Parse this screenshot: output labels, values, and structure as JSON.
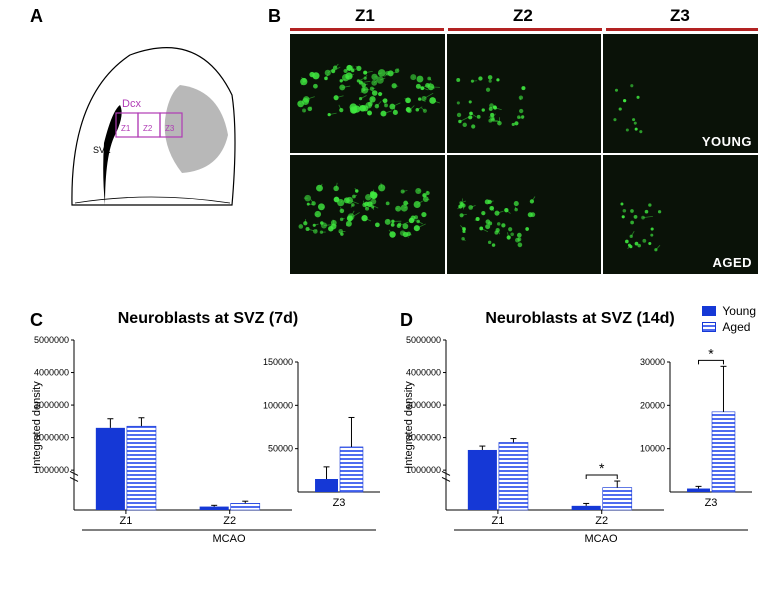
{
  "panelLabels": {
    "A": "A",
    "B": "B",
    "C": "C",
    "D": "D"
  },
  "panelLabelFontSize": 18,
  "schematic": {
    "marker_label": "Dcx",
    "marker_color": "#b03bb5",
    "zone_labels": [
      "Z1",
      "Z2",
      "Z3"
    ],
    "box_stroke": "#b03bb5",
    "outline_stroke": "#000000",
    "gray_fill": "#b8b8b8"
  },
  "micrographs": {
    "zones": [
      "Z1",
      "Z2",
      "Z3"
    ],
    "zone_fontsize": 17,
    "bar_color": "#b22222",
    "rows": [
      "YOUNG",
      "AGED"
    ],
    "row_label_fontsize": 13,
    "bg_color": "#0a1208",
    "signal_color": "#3fe83f",
    "intensity": {
      "YOUNG": [
        0.95,
        0.35,
        0.05
      ],
      "AGED": [
        0.9,
        0.45,
        0.18
      ]
    }
  },
  "chartC": {
    "title": "Neuroblasts at SVZ (7d)",
    "title_fontsize": 14,
    "type": "bar_grouped_broken_axis",
    "ylabel": "Integrated density",
    "ylabel_fontsize": 11,
    "xlabel": "MCAO",
    "categories": [
      "Z1",
      "Z2",
      "Z3"
    ],
    "groups": [
      "Young",
      "Aged"
    ],
    "colors": {
      "Young": "#1538d6",
      "Aged_stripe_fg": "#4f6cf0",
      "Aged_stripe_bg": "#ffffff"
    },
    "main_axis": {
      "ymin": 0,
      "ymax": 5000000,
      "break_low": 850000,
      "break_high": 900000,
      "ticks": [
        1000000,
        2000000,
        3000000,
        4000000,
        5000000
      ]
    },
    "values": {
      "Z1": {
        "Young": 2300000,
        "Aged": 2350000,
        "Young_err": 280000,
        "Aged_err": 260000
      },
      "Z2": {
        "Young": 95000,
        "Aged": 185000,
        "Young_err": 35000,
        "Aged_err": 60000
      }
    },
    "inset": {
      "category": "Z3",
      "ymin": 0,
      "ymax": 150000,
      "ticks": [
        50000,
        100000,
        150000
      ],
      "values": {
        "Young": 15000,
        "Aged": 52000,
        "Young_err": 14000,
        "Aged_err": 34000
      }
    },
    "axis_color": "#000000",
    "tick_fontsize": 9
  },
  "chartD": {
    "title": "Neuroblasts at SVZ (14d)",
    "title_fontsize": 14,
    "type": "bar_grouped_broken_axis",
    "ylabel": "Integrated density",
    "ylabel_fontsize": 11,
    "xlabel": "MCAO",
    "categories": [
      "Z1",
      "Z2",
      "Z3"
    ],
    "groups": [
      "Young",
      "Aged"
    ],
    "colors": {
      "Young": "#1538d6",
      "Aged_stripe_fg": "#4f6cf0",
      "Aged_stripe_bg": "#ffffff"
    },
    "main_axis": {
      "ymin": 0,
      "ymax": 5000000,
      "break_low": 280000,
      "break_high": 900000,
      "ticks": [
        1000000,
        2000000,
        3000000,
        4000000,
        5000000
      ]
    },
    "values": {
      "Z1": {
        "Young": 1620000,
        "Aged": 1850000,
        "Young_err": 120000,
        "Aged_err": 120000
      },
      "Z2": {
        "Young": 38000,
        "Aged": 205000,
        "Young_err": 22000,
        "Aged_err": 60000,
        "sig": "*"
      }
    },
    "inset": {
      "category": "Z3",
      "ymin": 0,
      "ymax": 30000,
      "ticks": [
        10000,
        20000,
        30000
      ],
      "values": {
        "Young": 800,
        "Aged": 18500,
        "Young_err": 500,
        "Aged_err": 10500
      },
      "sig": "*"
    },
    "axis_color": "#000000",
    "tick_fontsize": 9
  },
  "legend": {
    "Young": "Young",
    "Aged": "Aged"
  }
}
